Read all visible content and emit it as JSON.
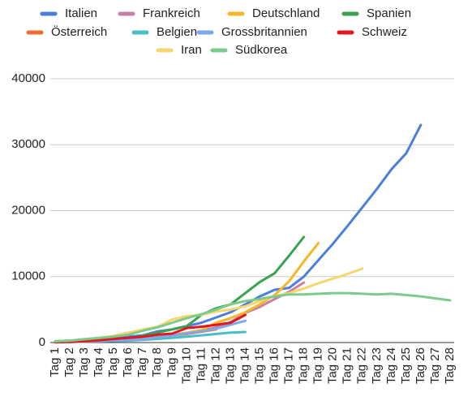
{
  "chart_data": {
    "type": "line",
    "categories": [
      "Tag 1",
      "Tag 2",
      "Tag 3",
      "Tag 4",
      "Tag 5",
      "Tag 6",
      "Tag 7",
      "Tag 8",
      "Tag 9",
      "Tag 10",
      "Tag 11",
      "Tag 12",
      "Tag 13",
      "Tag 14",
      "Tag 15",
      "Tag 16",
      "Tag 17",
      "Tag 18",
      "Tag 19",
      "Tag 20",
      "Tag 21",
      "Tag 22",
      "Tag 23",
      "Tag 24",
      "Tag 25",
      "Tag 26",
      "Tag 27",
      "Tag 28"
    ],
    "series": [
      {
        "name": "Italien",
        "color": "#4a7fdd",
        "values": [
          200,
          300,
          400,
          500,
          700,
          900,
          1100,
          1700,
          2000,
          2500,
          3000,
          3800,
          4600,
          5800,
          7000,
          8000,
          8300,
          10000,
          12500,
          15000,
          17700,
          20500,
          23300,
          26300,
          28700,
          33000,
          null,
          null
        ]
      },
      {
        "name": "Frankreich",
        "color": "#c77fa6",
        "values": [
          100,
          150,
          200,
          300,
          400,
          600,
          700,
          1000,
          1200,
          1400,
          1800,
          2300,
          3100,
          4500,
          5400,
          6600,
          7700,
          9100,
          null,
          null,
          null,
          null,
          null,
          null,
          null,
          null,
          null,
          null
        ]
      },
      {
        "name": "Deutschland",
        "color": "#f6b62a",
        "values": [
          100,
          150,
          200,
          250,
          400,
          550,
          800,
          1000,
          1200,
          1500,
          1900,
          3000,
          3700,
          4600,
          5800,
          7200,
          9300,
          12300,
          15100,
          null,
          null,
          null,
          null,
          null,
          null,
          null,
          null,
          null
        ]
      },
      {
        "name": "Spanien",
        "color": "#37a24f",
        "values": [
          100,
          200,
          300,
          400,
          500,
          700,
          1000,
          1500,
          2000,
          2500,
          4200,
          5200,
          5800,
          7500,
          9200,
          10500,
          13200,
          16000,
          null,
          null,
          null,
          null,
          null,
          null,
          null,
          null,
          null,
          null
        ]
      },
      {
        "name": "Österreich",
        "color": "#f26a2e",
        "values": [
          100,
          150,
          200,
          300,
          400,
          550,
          700,
          900,
          1100,
          1300,
          1650,
          2000,
          null,
          null,
          null,
          null,
          null,
          null,
          null,
          null,
          null,
          null,
          null,
          null,
          null,
          null,
          null,
          null
        ]
      },
      {
        "name": "Belgien",
        "color": "#45c0c6",
        "values": [
          50,
          100,
          150,
          200,
          250,
          300,
          400,
          550,
          700,
          900,
          1100,
          1300,
          1500,
          1600,
          null,
          null,
          null,
          null,
          null,
          null,
          null,
          null,
          null,
          null,
          null,
          null,
          null,
          null
        ]
      },
      {
        "name": "Grossbritannien",
        "color": "#7ea8ec",
        "values": [
          50,
          100,
          150,
          200,
          300,
          400,
          500,
          800,
          1100,
          1400,
          1700,
          2100,
          2700,
          3300,
          null,
          null,
          null,
          null,
          null,
          null,
          null,
          null,
          null,
          null,
          null,
          null,
          null,
          null
        ]
      },
      {
        "name": "Schweiz",
        "color": "#e3151e",
        "values": [
          50,
          100,
          200,
          350,
          550,
          700,
          900,
          1200,
          1350,
          2200,
          2400,
          2700,
          3000,
          4200,
          null,
          null,
          null,
          null,
          null,
          null,
          null,
          null,
          null,
          null,
          null,
          null,
          null,
          null
        ]
      },
      {
        "name": "Iran",
        "color": "#f8d66d",
        "values": [
          200,
          300,
          500,
          700,
          1000,
          1500,
          2000,
          2400,
          3500,
          4000,
          4200,
          4700,
          5000,
          5500,
          6300,
          7000,
          7500,
          8200,
          9000,
          9700,
          10400,
          11200,
          null,
          null,
          null,
          null,
          null,
          null
        ]
      },
      {
        "name": "Südkorea",
        "color": "#7ccb8c",
        "values": [
          200,
          300,
          500,
          700,
          900,
          1200,
          1800,
          2300,
          3000,
          3700,
          4300,
          5000,
          5800,
          6300,
          6600,
          7000,
          7300,
          7300,
          7400,
          7500,
          7500,
          7400,
          7300,
          7400,
          7200,
          7000,
          6700,
          6400
        ]
      }
    ],
    "ylim": [
      0,
      40000
    ],
    "yticks": [
      0,
      10000,
      20000,
      30000,
      40000
    ],
    "grid": true
  }
}
